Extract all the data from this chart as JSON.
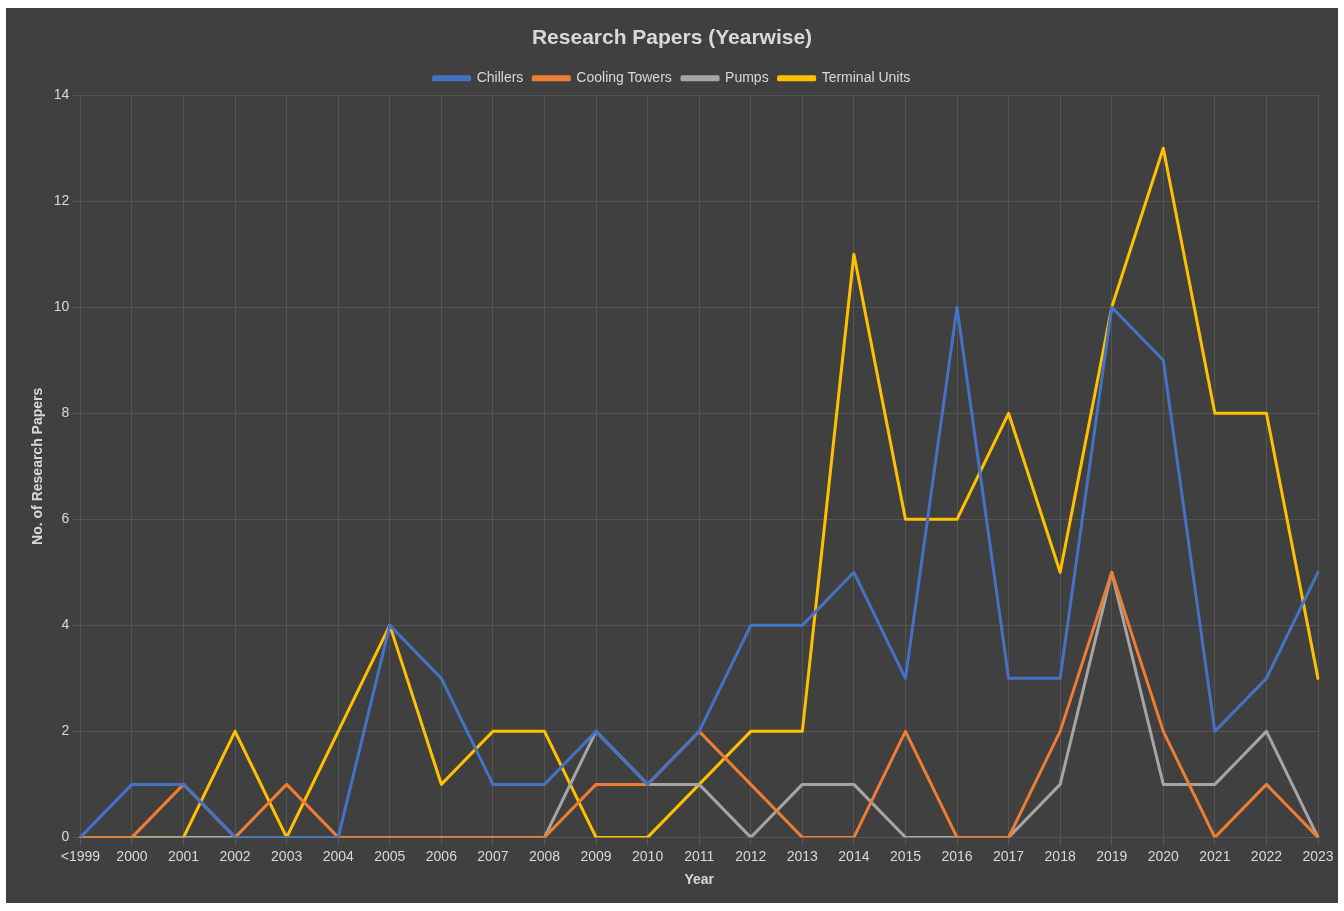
{
  "chart_data": {
    "type": "line",
    "title": "Research Papers (Yearwise)",
    "xlabel": "Year",
    "ylabel": "No. of Research Papers",
    "categories": [
      "<1999",
      "2000",
      "2001",
      "2002",
      "2003",
      "2004",
      "2005",
      "2006",
      "2007",
      "2008",
      "2009",
      "2010",
      "2011",
      "2012",
      "2013",
      "2014",
      "2015",
      "2016",
      "2017",
      "2018",
      "2019",
      "2020",
      "2021",
      "2022",
      "2023"
    ],
    "series": [
      {
        "name": "Chillers",
        "color": "#4472c4",
        "values": [
          0,
          1,
          1,
          0,
          0,
          0,
          4,
          3,
          1,
          1,
          2,
          1,
          2,
          4,
          4,
          5,
          3,
          10,
          3,
          3,
          10,
          9,
          2,
          3,
          5
        ]
      },
      {
        "name": "Cooling Towers",
        "color": "#ed7d31",
        "values": [
          0,
          0,
          1,
          0,
          1,
          0,
          0,
          0,
          0,
          0,
          1,
          1,
          2,
          1,
          0,
          0,
          2,
          0,
          0,
          2,
          5,
          2,
          0,
          1,
          0
        ]
      },
      {
        "name": "Pumps",
        "color": "#a5a5a5",
        "values": [
          0,
          0,
          0,
          0,
          0,
          0,
          0,
          0,
          0,
          0,
          2,
          1,
          1,
          0,
          1,
          1,
          0,
          0,
          0,
          1,
          5,
          1,
          1,
          2,
          0
        ]
      },
      {
        "name": "Terminal Units",
        "color": "#ffc000",
        "values": [
          0,
          0,
          0,
          2,
          0,
          2,
          4,
          1,
          2,
          2,
          0,
          0,
          1,
          2,
          2,
          11,
          6,
          6,
          8,
          5,
          10,
          13,
          8,
          8,
          3
        ]
      }
    ],
    "ylim": [
      0,
      14
    ],
    "yticks": [
      0,
      2,
      4,
      6,
      8,
      10,
      12,
      14
    ],
    "grid": true,
    "legend": "top",
    "marker": "none",
    "line_style": "solid"
  }
}
